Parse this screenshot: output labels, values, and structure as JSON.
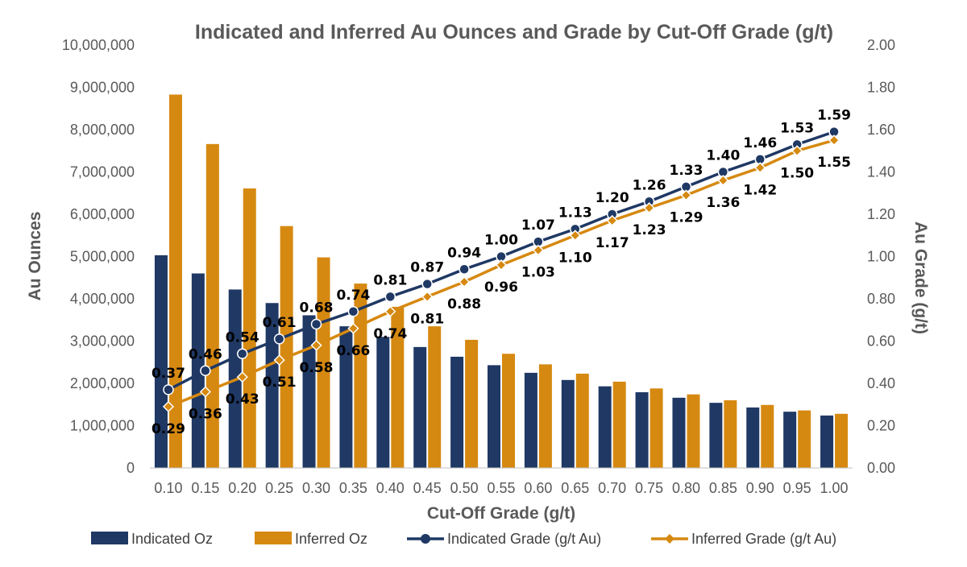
{
  "chart_data": {
    "type": "bar",
    "title": "Indicated and Inferred Au Ounces and Grade by Cut-Off Grade (g/t)",
    "xlabel": "Cut-Off Grade (g/t)",
    "ylabel": "Au Ounces",
    "y2label": "Au Grade (g/t)",
    "ylim": [
      0,
      10000000
    ],
    "y2lim": [
      0,
      2.0
    ],
    "grid": false,
    "legend_position": "bottom",
    "categories": [
      "0.10",
      "0.15",
      "0.20",
      "0.25",
      "0.30",
      "0.35",
      "0.40",
      "0.45",
      "0.50",
      "0.55",
      "0.60",
      "0.65",
      "0.70",
      "0.75",
      "0.80",
      "0.85",
      "0.90",
      "0.95",
      "1.00"
    ],
    "y_ticks": [
      "0",
      "1,000,000",
      "2,000,000",
      "3,000,000",
      "4,000,000",
      "5,000,000",
      "6,000,000",
      "7,000,000",
      "8,000,000",
      "9,000,000",
      "10,000,000"
    ],
    "y2_ticks": [
      "0.00",
      "0.20",
      "0.40",
      "0.60",
      "0.80",
      "1.00",
      "1.20",
      "1.40",
      "1.60",
      "1.80",
      "2.00"
    ],
    "series": [
      {
        "name": "Indicated Oz",
        "kind": "bar",
        "axis": "left",
        "color": "#1F3864",
        "values": [
          5030000,
          4600000,
          4220000,
          3900000,
          3610000,
          3350000,
          3100000,
          2860000,
          2630000,
          2430000,
          2250000,
          2080000,
          1930000,
          1790000,
          1660000,
          1540000,
          1430000,
          1330000,
          1240000
        ]
      },
      {
        "name": "Inferred Oz",
        "kind": "bar",
        "axis": "left",
        "color": "#D68910",
        "values": [
          8830000,
          7660000,
          6610000,
          5720000,
          4980000,
          4360000,
          3810000,
          3350000,
          3030000,
          2700000,
          2450000,
          2230000,
          2040000,
          1880000,
          1740000,
          1600000,
          1490000,
          1360000,
          1280000
        ]
      },
      {
        "name": "Indicated Grade (g/t Au)",
        "kind": "line",
        "axis": "right",
        "color": "#1F3864",
        "marker": "circle",
        "values": [
          0.37,
          0.46,
          0.54,
          0.61,
          0.68,
          0.74,
          0.81,
          0.87,
          0.94,
          1.0,
          1.07,
          1.13,
          1.2,
          1.26,
          1.33,
          1.4,
          1.46,
          1.53,
          1.59
        ],
        "labels": [
          "0.37",
          "0.46",
          "0.54",
          "0.61",
          "0.68",
          "0.74",
          "0.81",
          "0.87",
          "0.94",
          "1.00",
          "1.07",
          "1.13",
          "1.20",
          "1.26",
          "1.33",
          "1.40",
          "1.46",
          "1.53",
          "1.59"
        ]
      },
      {
        "name": "Inferred Grade (g/t Au)",
        "kind": "line",
        "axis": "right",
        "color": "#D68910",
        "marker": "diamond",
        "values": [
          0.29,
          0.36,
          0.43,
          0.51,
          0.58,
          0.66,
          0.74,
          0.81,
          0.88,
          0.96,
          1.03,
          1.1,
          1.17,
          1.23,
          1.29,
          1.36,
          1.42,
          1.5,
          1.55
        ],
        "labels": [
          "0.29",
          "0.36",
          "0.43",
          "0.51",
          "0.58",
          "0.66",
          "0.74",
          "0.81",
          "0.88",
          "0.96",
          "1.03",
          "1.10",
          "1.17",
          "1.23",
          "1.29",
          "1.36",
          "1.42",
          "1.50",
          "1.55"
        ]
      }
    ]
  }
}
